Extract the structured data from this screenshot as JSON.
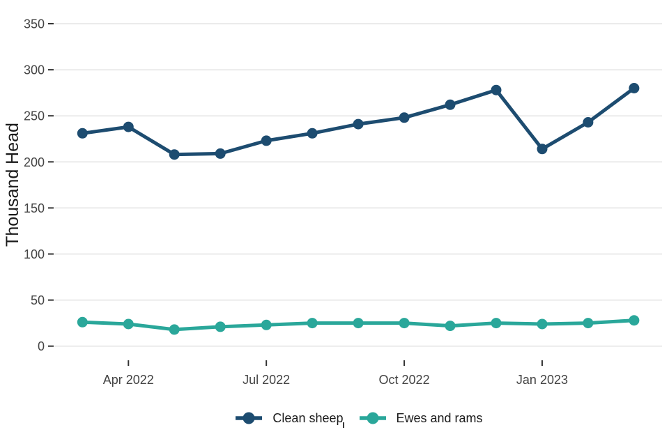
{
  "chart_data": {
    "type": "line",
    "title": "",
    "xlabel": "",
    "ylabel": "Thousand Head",
    "x": [
      "Mar 2022",
      "Apr 2022",
      "May 2022",
      "Jun 2022",
      "Jul 2022",
      "Aug 2022",
      "Sep 2022",
      "Oct 2022",
      "Nov 2022",
      "Dec 2022",
      "Jan 2023",
      "Feb 2023",
      "Mar 2023"
    ],
    "series": [
      {
        "name": "Clean sheep",
        "color": "#1d4c70",
        "values": [
          231,
          238,
          208,
          209,
          223,
          231,
          241,
          248,
          262,
          278,
          214,
          243,
          280
        ]
      },
      {
        "name": "Ewes and rams",
        "color": "#2aa79a",
        "values": [
          26,
          24,
          18,
          21,
          23,
          25,
          25,
          25,
          22,
          25,
          24,
          25,
          28
        ]
      }
    ],
    "ylim": [
      0,
      350
    ],
    "yticks": [
      0,
      50,
      100,
      150,
      200,
      250,
      300,
      350
    ],
    "x_ticks": [
      {
        "index": 1,
        "label": "Apr 2022"
      },
      {
        "index": 4,
        "label": "Jul 2022"
      },
      {
        "index": 7,
        "label": "Oct 2022"
      },
      {
        "index": 10,
        "label": "Jan 2023"
      }
    ],
    "grid": "horizontal-only",
    "legend_position": "bottom-center",
    "colors": {
      "background": "#ffffff",
      "gridline": "#ebebeb",
      "tick_mark": "#333333",
      "axis_text": "#444444",
      "axis_title": "#1a1a1a",
      "legend_text": "#1a1a1a"
    }
  }
}
